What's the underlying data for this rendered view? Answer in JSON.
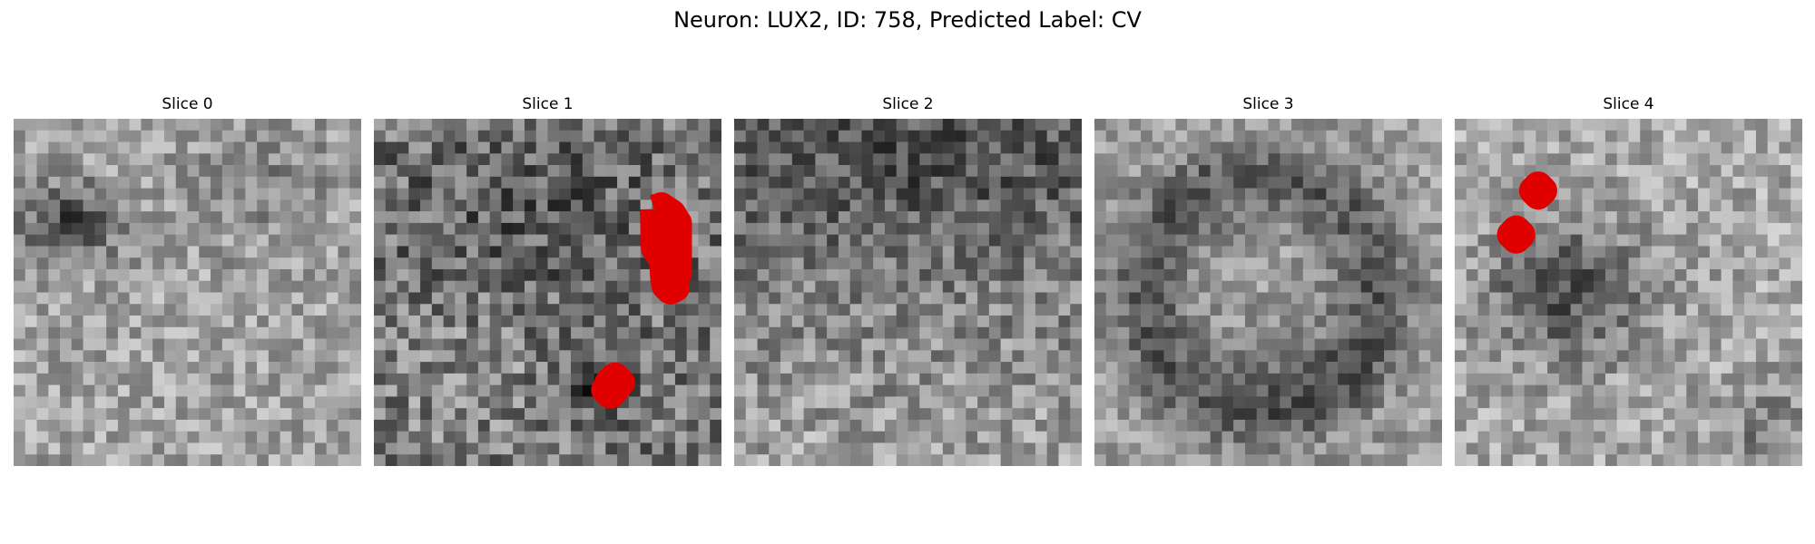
{
  "figure": {
    "title": "Neuron: LUX2, ID: 758, Predicted Label: CV"
  },
  "panels": [
    {
      "title": "Slice 0",
      "image": "grayscale-noise-slice"
    },
    {
      "title": "Slice 1",
      "image": "grayscale-noise-slice",
      "annotation_color": "#e00000"
    },
    {
      "title": "Slice 2",
      "image": "grayscale-noise-slice"
    },
    {
      "title": "Slice 3",
      "image": "grayscale-noise-slice"
    },
    {
      "title": "Slice 4",
      "image": "grayscale-noise-slice",
      "annotation_color": "#e00000"
    }
  ]
}
